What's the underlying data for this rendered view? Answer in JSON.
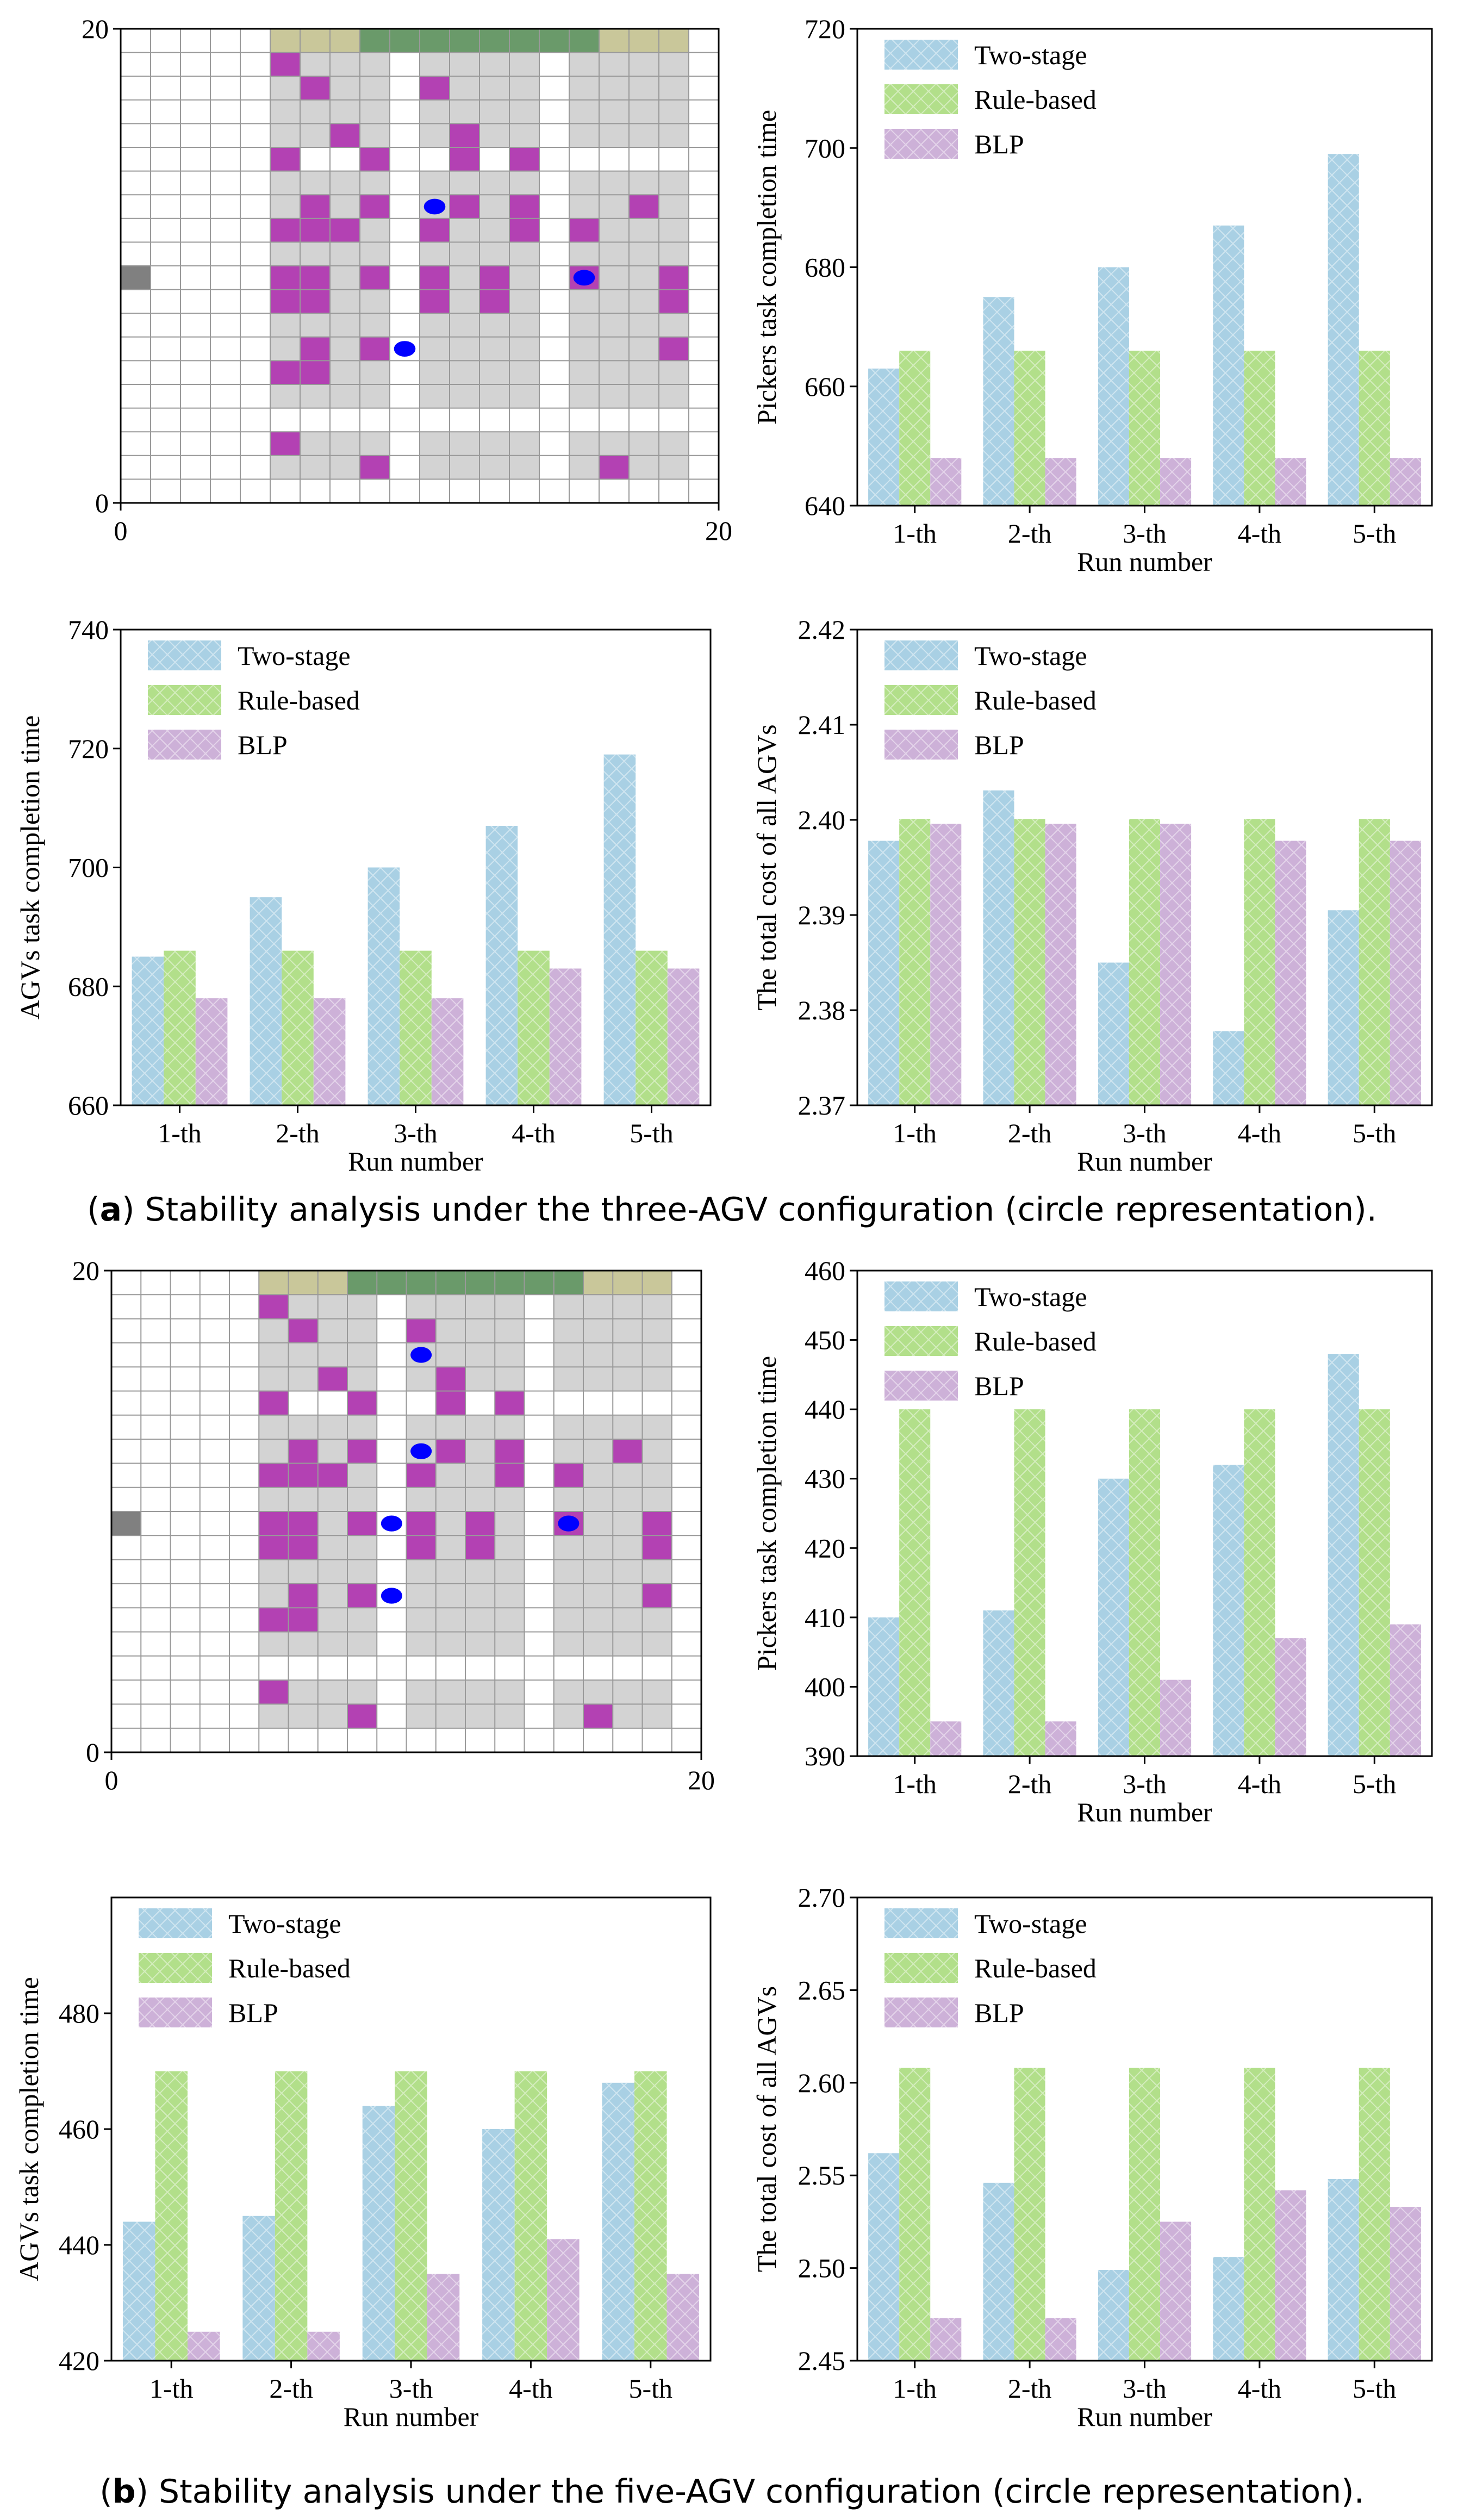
{
  "captions": {
    "a": {
      "label": "a",
      "text": ") Stability analysis under the three-AGV configuration (circle representation)."
    },
    "b": {
      "label": "b",
      "text": ") Stability analysis under the five-AGV configuration (circle representation)."
    }
  },
  "colors": {
    "two_stage": "#a9d0e4",
    "rule_based": "#b2df8a",
    "blp": "#cdb1d8",
    "shelf": "#d3d3d3",
    "occupied": "#b341b3",
    "agv": "#0000ff",
    "depot": "#808080",
    "station_side": "#c9c79a",
    "station_mid": "#6a9a6a"
  },
  "warehouse_maps": [
    {
      "id": "map-a",
      "xlim": [
        0,
        20
      ],
      "ylim": [
        0,
        20
      ],
      "x_tick_labels": [
        "0",
        "20"
      ],
      "y_tick_labels": [
        "0",
        "20"
      ],
      "shelf_cols": [
        5,
        6,
        7,
        8,
        10,
        11,
        12,
        13,
        15,
        16,
        17,
        18
      ],
      "shelf_rows": [
        1,
        2,
        4,
        5,
        6,
        7,
        8,
        9,
        10,
        11,
        12,
        13,
        15,
        16,
        17,
        18
      ],
      "occupied": [
        [
          5,
          18
        ],
        [
          6,
          17
        ],
        [
          10,
          17
        ],
        [
          7,
          15
        ],
        [
          5,
          14
        ],
        [
          8,
          14
        ],
        [
          11,
          15
        ],
        [
          11,
          14
        ],
        [
          13,
          14
        ],
        [
          6,
          12
        ],
        [
          8,
          12
        ],
        [
          11,
          12
        ],
        [
          13,
          12
        ],
        [
          17,
          12
        ],
        [
          5,
          11
        ],
        [
          6,
          11
        ],
        [
          7,
          11
        ],
        [
          10,
          11
        ],
        [
          13,
          11
        ],
        [
          15,
          11
        ],
        [
          5,
          9
        ],
        [
          6,
          9
        ],
        [
          8,
          9
        ],
        [
          10,
          9
        ],
        [
          12,
          9
        ],
        [
          15,
          9
        ],
        [
          18,
          9
        ],
        [
          5,
          8
        ],
        [
          6,
          8
        ],
        [
          10,
          8
        ],
        [
          12,
          8
        ],
        [
          18,
          8
        ],
        [
          6,
          6
        ],
        [
          8,
          6
        ],
        [
          18,
          6
        ],
        [
          5,
          5
        ],
        [
          6,
          5
        ],
        [
          5,
          2
        ],
        [
          8,
          1
        ],
        [
          16,
          1
        ]
      ],
      "agvs": [
        [
          10.5,
          12.5
        ],
        [
          15.5,
          9.5
        ],
        [
          9.5,
          6.5
        ]
      ],
      "depot": [
        [
          0,
          9
        ]
      ],
      "stations": [
        {
          "x0": 5,
          "x1": 8,
          "kind": "side"
        },
        {
          "x0": 8,
          "x1": 16,
          "kind": "mid"
        },
        {
          "x0": 16,
          "x1": 19,
          "kind": "side"
        }
      ]
    },
    {
      "id": "map-b",
      "xlim": [
        0,
        20
      ],
      "ylim": [
        0,
        20
      ],
      "x_tick_labels": [
        "0",
        "20"
      ],
      "y_tick_labels": [
        "0",
        "20"
      ],
      "shelf_cols": [
        5,
        6,
        7,
        8,
        10,
        11,
        12,
        13,
        15,
        16,
        17,
        18
      ],
      "shelf_rows": [
        1,
        2,
        4,
        5,
        6,
        7,
        8,
        9,
        10,
        11,
        12,
        13,
        15,
        16,
        17,
        18
      ],
      "occupied": [
        [
          5,
          18
        ],
        [
          6,
          17
        ],
        [
          10,
          17
        ],
        [
          7,
          15
        ],
        [
          5,
          14
        ],
        [
          8,
          14
        ],
        [
          11,
          15
        ],
        [
          11,
          14
        ],
        [
          13,
          14
        ],
        [
          6,
          12
        ],
        [
          8,
          12
        ],
        [
          11,
          12
        ],
        [
          13,
          12
        ],
        [
          17,
          12
        ],
        [
          5,
          11
        ],
        [
          6,
          11
        ],
        [
          7,
          11
        ],
        [
          10,
          11
        ],
        [
          13,
          11
        ],
        [
          15,
          11
        ],
        [
          5,
          9
        ],
        [
          6,
          9
        ],
        [
          8,
          9
        ],
        [
          10,
          9
        ],
        [
          12,
          9
        ],
        [
          15,
          9
        ],
        [
          18,
          9
        ],
        [
          5,
          8
        ],
        [
          6,
          8
        ],
        [
          10,
          8
        ],
        [
          12,
          8
        ],
        [
          18,
          8
        ],
        [
          6,
          6
        ],
        [
          8,
          6
        ],
        [
          18,
          6
        ],
        [
          5,
          5
        ],
        [
          6,
          5
        ],
        [
          5,
          2
        ],
        [
          8,
          1
        ],
        [
          16,
          1
        ]
      ],
      "agvs": [
        [
          10.5,
          16.5
        ],
        [
          10.5,
          12.5
        ],
        [
          9.5,
          9.5
        ],
        [
          15.5,
          9.5
        ],
        [
          9.5,
          6.5
        ]
      ],
      "depot": [
        [
          0,
          9
        ]
      ],
      "stations": [
        {
          "x0": 5,
          "x1": 8,
          "kind": "side"
        },
        {
          "x0": 8,
          "x1": 16,
          "kind": "mid"
        },
        {
          "x0": 16,
          "x1": 19,
          "kind": "side"
        }
      ]
    }
  ],
  "chart_data": [
    {
      "id": "a-pickers",
      "type": "bar",
      "categories": [
        "1-th",
        "2-th",
        "3-th",
        "4-th",
        "5-th"
      ],
      "series": [
        {
          "name": "Two-stage",
          "values": [
            663,
            675,
            680,
            687,
            699
          ]
        },
        {
          "name": "Rule-based",
          "values": [
            666,
            666,
            666,
            666,
            666
          ]
        },
        {
          "name": "BLP",
          "values": [
            648,
            648,
            648,
            648,
            648
          ]
        }
      ],
      "xlabel": "Run number",
      "ylabel": "Pickers task completion time",
      "ylim": [
        640,
        720
      ],
      "yticks": [
        "640",
        "660",
        "680",
        "700",
        "720"
      ],
      "legend_position": "top-left"
    },
    {
      "id": "a-agvs",
      "type": "bar",
      "categories": [
        "1-th",
        "2-th",
        "3-th",
        "4-th",
        "5-th"
      ],
      "series": [
        {
          "name": "Two-stage",
          "values": [
            685,
            695,
            700,
            707,
            719
          ]
        },
        {
          "name": "Rule-based",
          "values": [
            686,
            686,
            686,
            686,
            686
          ]
        },
        {
          "name": "BLP",
          "values": [
            678,
            678,
            678,
            683,
            683
          ]
        }
      ],
      "xlabel": "Run number",
      "ylabel": "AGVs task completion time",
      "ylim": [
        660,
        740
      ],
      "yticks": [
        "660",
        "680",
        "700",
        "720",
        "740"
      ],
      "legend_position": "top-left"
    },
    {
      "id": "a-cost",
      "type": "bar",
      "categories": [
        "1-th",
        "2-th",
        "3-th",
        "4-th",
        "5-th"
      ],
      "series": [
        {
          "name": "Two-stage",
          "values": [
            2.3978,
            2.4031,
            2.385,
            2.3778,
            2.3905
          ]
        },
        {
          "name": "Rule-based",
          "values": [
            2.4001,
            2.4001,
            2.4001,
            2.4001,
            2.4001
          ]
        },
        {
          "name": "BLP",
          "values": [
            2.3996,
            2.3996,
            2.3996,
            2.3978,
            2.3978
          ]
        }
      ],
      "xlabel": "Run number",
      "ylabel": "The total cost of all AGVs",
      "ylim": [
        2.37,
        2.42
      ],
      "yticks": [
        "2.37",
        "2.38",
        "2.39",
        "2.40",
        "2.41",
        "2.42"
      ],
      "legend_position": "top-left"
    },
    {
      "id": "b-pickers",
      "type": "bar",
      "categories": [
        "1-th",
        "2-th",
        "3-th",
        "4-th",
        "5-th"
      ],
      "series": [
        {
          "name": "Two-stage",
          "values": [
            410,
            411,
            430,
            432,
            448
          ]
        },
        {
          "name": "Rule-based",
          "values": [
            440,
            440,
            440,
            440,
            440
          ]
        },
        {
          "name": "BLP",
          "values": [
            395,
            395,
            401,
            407,
            409
          ]
        }
      ],
      "xlabel": "Run number",
      "ylabel": "Pickers task completion time",
      "ylim": [
        390,
        460
      ],
      "yticks": [
        "390",
        "400",
        "410",
        "420",
        "430",
        "440",
        "450",
        "460"
      ],
      "legend_position": "top-left"
    },
    {
      "id": "b-agvs",
      "type": "bar",
      "categories": [
        "1-th",
        "2-th",
        "3-th",
        "4-th",
        "5-th"
      ],
      "series": [
        {
          "name": "Two-stage",
          "values": [
            444,
            445,
            464,
            460,
            468
          ]
        },
        {
          "name": "Rule-based",
          "values": [
            470,
            470,
            470,
            470,
            470
          ]
        },
        {
          "name": "BLP",
          "values": [
            425,
            425,
            435,
            441,
            435
          ]
        }
      ],
      "xlabel": "Run number",
      "ylabel": "AGVs task completion time",
      "ylim": [
        420,
        500
      ],
      "yticks": [
        "420",
        "440",
        "460",
        "480"
      ],
      "legend_position": "top-left"
    },
    {
      "id": "b-cost",
      "type": "bar",
      "categories": [
        "1-th",
        "2-th",
        "3-th",
        "4-th",
        "5-th"
      ],
      "series": [
        {
          "name": "Two-stage",
          "values": [
            2.562,
            2.546,
            2.499,
            2.506,
            2.548
          ]
        },
        {
          "name": "Rule-based",
          "values": [
            2.608,
            2.608,
            2.608,
            2.608,
            2.608
          ]
        },
        {
          "name": "BLP",
          "values": [
            2.473,
            2.473,
            2.525,
            2.542,
            2.533
          ]
        }
      ],
      "xlabel": "Run number",
      "ylabel": "The total cost of all AGVs",
      "ylim": [
        2.45,
        2.7
      ],
      "yticks": [
        "2.45",
        "2.50",
        "2.55",
        "2.60",
        "2.65",
        "2.70"
      ],
      "legend_position": "top-left"
    }
  ]
}
